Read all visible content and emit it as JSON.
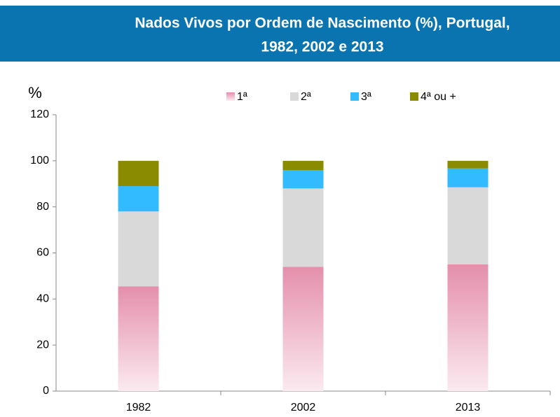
{
  "chart_data": {
    "type": "stacked_bar",
    "title_lines": [
      "Nados Vivos por Ordem de Nascimento (%), Portugal,",
      "1982, 2002 e 2013"
    ],
    "ylabel": "%",
    "categories": [
      "1982",
      "2002",
      "2013"
    ],
    "series": [
      {
        "name": "1ª",
        "color": "#e48fab",
        "values": [
          45.5,
          54,
          55
        ]
      },
      {
        "name": "2ª",
        "color": "#d9d9d9",
        "values": [
          32.5,
          34,
          33.5
        ]
      },
      {
        "name": "3ª",
        "color": "#33bbff",
        "values": [
          11,
          8,
          8.2
        ]
      },
      {
        "name": "4ª ou +",
        "color": "#8b8b00",
        "values": [
          11,
          4,
          3.3
        ]
      }
    ],
    "ylim": [
      0,
      120
    ],
    "yticks": [
      0,
      20,
      40,
      60,
      80,
      100,
      120
    ],
    "grid": false,
    "legend": "top"
  }
}
